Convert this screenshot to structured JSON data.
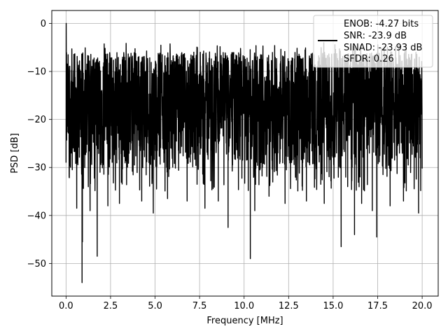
{
  "chart_data": {
    "type": "line",
    "title": "",
    "xlabel": "Frequency [MHz]",
    "ylabel": "PSD [dB]",
    "xlim": [
      -0.8,
      20.9
    ],
    "ylim": [
      -56.8,
      2.7
    ],
    "xticks": [
      0.0,
      2.5,
      5.0,
      7.5,
      10.0,
      12.5,
      15.0,
      17.5,
      20.0
    ],
    "xtick_labels": [
      "0.0",
      "2.5",
      "5.0",
      "7.5",
      "10.0",
      "12.5",
      "15.0",
      "17.5",
      "20.0"
    ],
    "yticks": [
      0,
      -10,
      -20,
      -30,
      -40,
      -50
    ],
    "ytick_labels": [
      "0",
      "−10",
      "−20",
      "−30",
      "−40",
      "−50"
    ],
    "grid": true,
    "legend": {
      "placement": "top-right",
      "lines": [
        "ENOB: -4.27 bits",
        "SNR: -23.9 dB",
        "SINAD: -23.93 dB",
        "SFDR: 0.26"
      ]
    },
    "series": [
      {
        "color": "#000000",
        "x_range": [
          0.0,
          20.0
        ],
        "noise_band": [
          -31,
          -6
        ],
        "peak": {
          "x": 0.02,
          "y": 0.0
        },
        "dips": [
          {
            "x": 0.9,
            "y": -54.0
          },
          {
            "x": 0.92,
            "y": -45.5
          },
          {
            "x": 1.75,
            "y": -48.5
          },
          {
            "x": 0.6,
            "y": -38.5
          },
          {
            "x": 1.35,
            "y": -39.0
          },
          {
            "x": 2.35,
            "y": -38.0
          },
          {
            "x": 3.0,
            "y": -37.5
          },
          {
            "x": 4.25,
            "y": -37.0
          },
          {
            "x": 4.9,
            "y": -39.5
          },
          {
            "x": 5.7,
            "y": -36.5
          },
          {
            "x": 6.8,
            "y": -37.0
          },
          {
            "x": 7.8,
            "y": -38.5
          },
          {
            "x": 8.55,
            "y": -37.0
          },
          {
            "x": 9.1,
            "y": -42.5
          },
          {
            "x": 10.35,
            "y": -49.0
          },
          {
            "x": 10.6,
            "y": -39.0
          },
          {
            "x": 11.4,
            "y": -36.0
          },
          {
            "x": 12.3,
            "y": -37.5
          },
          {
            "x": 13.5,
            "y": -37.0
          },
          {
            "x": 14.5,
            "y": -37.5
          },
          {
            "x": 15.45,
            "y": -46.5
          },
          {
            "x": 16.2,
            "y": -44.0
          },
          {
            "x": 16.6,
            "y": -37.5
          },
          {
            "x": 17.2,
            "y": -39.0
          },
          {
            "x": 17.45,
            "y": -44.5
          },
          {
            "x": 18.2,
            "y": -38.0
          },
          {
            "x": 18.95,
            "y": -37.0
          },
          {
            "x": 19.8,
            "y": -39.5
          }
        ]
      }
    ]
  }
}
